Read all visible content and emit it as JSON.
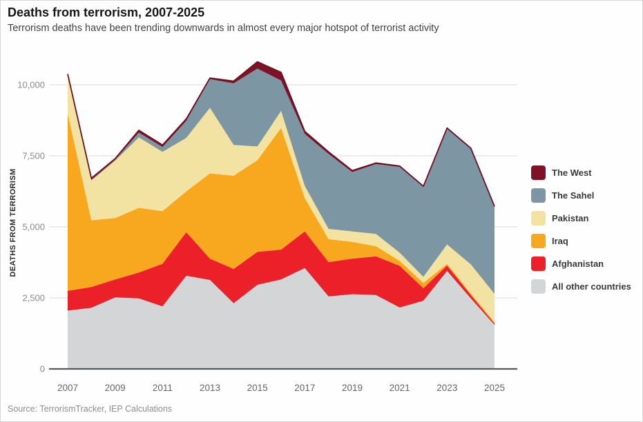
{
  "header": {
    "title": "Deaths from terrorism, 2007-2025",
    "subtitle": "Terrorism deaths have been trending downwards in almost every major hotspot of terrorist activity"
  },
  "source": "Source: TerrorismTracker, IEP Calculations",
  "colors": {
    "grid": "#d9d9d9",
    "axis": "#58595b",
    "y_tick_label": "#8a8a8a",
    "x_tick_label": "#656565",
    "top_outline": "#6e1020"
  },
  "chart_data": {
    "type": "area",
    "subtype": "stacked",
    "title": "Deaths from terrorism, 2007-2025",
    "xlabel": "",
    "ylabel": "DEATHS FROM TERRORISM",
    "x": [
      2007,
      2008,
      2009,
      2010,
      2011,
      2012,
      2013,
      2014,
      2015,
      2016,
      2017,
      2018,
      2019,
      2020,
      2021,
      2022,
      2023,
      2024,
      2025
    ],
    "x_tick_labels": [
      "2007",
      "2009",
      "2011",
      "2013",
      "2015",
      "2017",
      "2019",
      "2021",
      "2023",
      "2025"
    ],
    "x_tick_years": [
      2007,
      2009,
      2011,
      2013,
      2015,
      2017,
      2019,
      2021,
      2023,
      2025
    ],
    "ylim": [
      0,
      11000
    ],
    "y_ticks": [
      {
        "value": 0,
        "label": "0"
      },
      {
        "value": 2500,
        "label": "2,500"
      },
      {
        "value": 5000,
        "label": "5,000"
      },
      {
        "value": 7500,
        "label": "7,500"
      },
      {
        "value": 10000,
        "label": "10,000"
      }
    ],
    "grid": "horizontal",
    "legend_position": "right",
    "stack_order_note": "series listed bottom-to-top; legend displays top-to-bottom reversed",
    "series": [
      {
        "name": "All other countries",
        "color": "#d3d5d7",
        "values": [
          2050,
          2150,
          2520,
          2480,
          2200,
          3280,
          3130,
          2310,
          2960,
          3150,
          3550,
          2550,
          2630,
          2600,
          2160,
          2400,
          3450,
          2480,
          1550
        ]
      },
      {
        "name": "Afghanistan",
        "color": "#ec2028",
        "values": [
          700,
          730,
          630,
          910,
          1500,
          1530,
          750,
          1210,
          1160,
          1050,
          1290,
          1210,
          1250,
          1360,
          1470,
          440,
          190,
          120,
          50
        ]
      },
      {
        "name": "Iraq",
        "color": "#f7a81f",
        "values": [
          6250,
          2350,
          2160,
          2280,
          1850,
          1440,
          3000,
          3280,
          3230,
          4280,
          1170,
          810,
          590,
          360,
          170,
          190,
          60,
          50,
          40
        ]
      },
      {
        "name": "Pakistan",
        "color": "#f2e3a2",
        "values": [
          1300,
          1400,
          2020,
          2480,
          2090,
          1880,
          2310,
          1080,
          480,
          600,
          430,
          360,
          370,
          430,
          290,
          210,
          680,
          1030,
          1000
        ]
      },
      {
        "name": "The Sahel",
        "color": "#7d96a3",
        "values": [
          30,
          30,
          30,
          170,
          170,
          600,
          1010,
          2170,
          2740,
          1070,
          1830,
          2640,
          2090,
          2460,
          3020,
          3160,
          4070,
          4060,
          3060
        ]
      },
      {
        "name": "The West",
        "color": "#7e1226",
        "values": [
          50,
          50,
          40,
          80,
          70,
          70,
          40,
          80,
          240,
          290,
          90,
          70,
          50,
          40,
          30,
          30,
          30,
          30,
          20
        ]
      }
    ]
  }
}
